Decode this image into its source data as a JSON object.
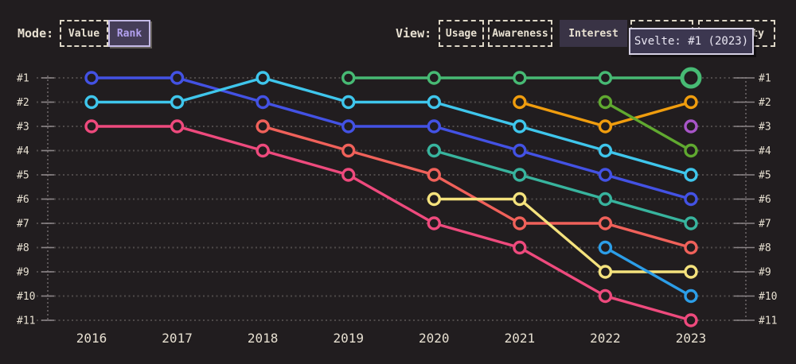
{
  "mode_toolbar": {
    "label": "Mode:",
    "options": [
      {
        "label": "Value",
        "selected": false
      },
      {
        "label": "Rank",
        "selected": true
      }
    ]
  },
  "view_toolbar": {
    "label": "View:",
    "options": [
      {
        "label": "Usage",
        "selected": false
      },
      {
        "label": "Awareness",
        "selected": false
      },
      {
        "label": "Interest",
        "selected": true
      },
      {
        "label": "",
        "selected": false,
        "obscured_by_tooltip": true
      },
      {
        "label": "ty",
        "selected": false,
        "partially_visible": true
      }
    ]
  },
  "tooltip": {
    "text": "Svelte: #1 (2023)"
  },
  "colors": {
    "background": "#211d1f",
    "text": "#e8e1d2",
    "accent_purple": "#b3a1f0",
    "grid": "#4f4a4a"
  },
  "chart_data": {
    "type": "line",
    "subtype": "bump-rank",
    "x": [
      "2016",
      "2017",
      "2018",
      "2019",
      "2020",
      "2021",
      "2022",
      "2023"
    ],
    "y_axis_labels": [
      "#1",
      "#2",
      "#3",
      "#4",
      "#5",
      "#6",
      "#7",
      "#8",
      "#9",
      "#10",
      "#11"
    ],
    "y_axis_mirrored_right": true,
    "ylim": [
      1,
      11
    ],
    "y_inverted": true,
    "grid": "dotted-horizontal",
    "legend": "none",
    "series": [
      {
        "name": "blue",
        "color": "#4352e4",
        "ranks": [
          1,
          1,
          2,
          3,
          3,
          4,
          5,
          6
        ]
      },
      {
        "name": "cyan",
        "color": "#3fc6ec",
        "ranks": [
          2,
          2,
          1,
          2,
          2,
          3,
          4,
          5
        ]
      },
      {
        "name": "pink",
        "color": "#ee4a7d",
        "ranks": [
          3,
          3,
          4,
          5,
          7,
          8,
          10,
          11
        ]
      },
      {
        "name": "red",
        "color": "#f0615a",
        "ranks": [
          null,
          null,
          3,
          4,
          5,
          7,
          7,
          8
        ]
      },
      {
        "name": "teal",
        "color": "#38b49e",
        "ranks": [
          null,
          null,
          null,
          null,
          4,
          5,
          6,
          7
        ]
      },
      {
        "name": "orange",
        "color": "#f09d0e",
        "ranks": [
          null,
          null,
          null,
          null,
          null,
          2,
          3,
          2
        ]
      },
      {
        "name": "lime",
        "color": "#60a930",
        "ranks": [
          null,
          null,
          null,
          null,
          null,
          null,
          2,
          4
        ]
      },
      {
        "name": "purple",
        "color": "#a855c8",
        "ranks": [
          null,
          null,
          null,
          null,
          null,
          null,
          null,
          3
        ]
      },
      {
        "name": "yellow",
        "color": "#f4e27d",
        "ranks": [
          null,
          null,
          null,
          null,
          6,
          6,
          9,
          9
        ]
      },
      {
        "name": "sky",
        "color": "#2c9ee8",
        "ranks": [
          null,
          null,
          null,
          null,
          null,
          null,
          8,
          10
        ]
      },
      {
        "name": "svelte",
        "label": "Svelte",
        "color": "#47ba74",
        "ranks": [
          null,
          null,
          null,
          1,
          1,
          1,
          1,
          1
        ],
        "highlight_year_index": 7
      }
    ],
    "highlighted_point": {
      "series": "svelte",
      "year": "2023",
      "rank": 1,
      "tooltip": "Svelte: #1 (2023)"
    }
  }
}
